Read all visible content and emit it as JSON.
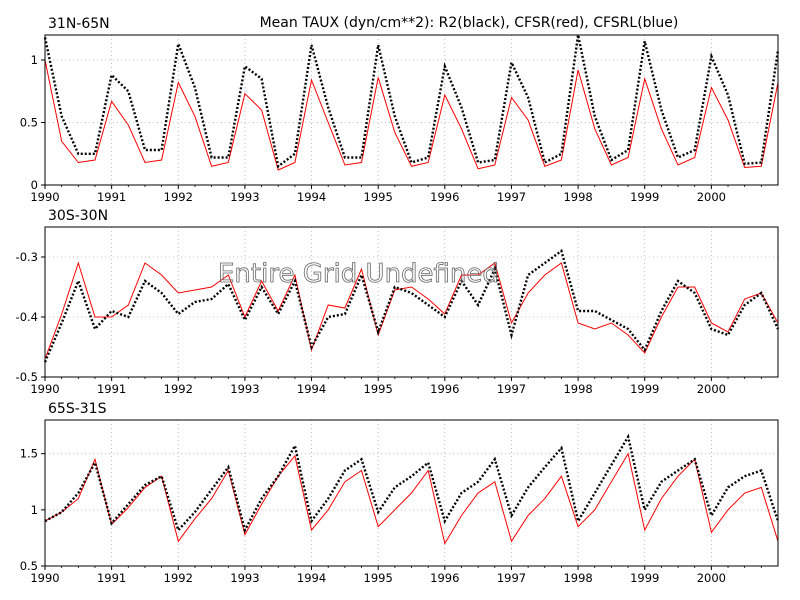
{
  "figure": {
    "title": "Mean TAUX (dyn/cm**2): R2(black), CFSR(red), CFSRL(blue)",
    "watermark": "Entire Grid Undefined"
  },
  "chart_data": [
    {
      "type": "line",
      "title": "31N-65N",
      "x_start": 1990,
      "x_step": 0.25,
      "x_ticks": [
        1990,
        1991,
        1992,
        1993,
        1994,
        1995,
        1996,
        1997,
        1998,
        1999,
        2000
      ],
      "ylim": [
        0,
        1.2
      ],
      "y_ticks": [
        0,
        0.5,
        1
      ],
      "y_tick_labels": [
        "0",
        "0.5",
        "1"
      ],
      "grid": true,
      "series": [
        {
          "name": "R2",
          "color": "#000000",
          "style": "dotted",
          "values": [
            1.18,
            0.55,
            0.25,
            0.25,
            0.88,
            0.75,
            0.28,
            0.28,
            1.13,
            0.78,
            0.22,
            0.22,
            0.95,
            0.85,
            0.15,
            0.25,
            1.12,
            0.62,
            0.22,
            0.22,
            1.12,
            0.55,
            0.18,
            0.22,
            0.95,
            0.62,
            0.18,
            0.2,
            0.98,
            0.7,
            0.18,
            0.25,
            1.2,
            0.55,
            0.2,
            0.28,
            1.15,
            0.6,
            0.22,
            0.28,
            1.03,
            0.72,
            0.17,
            0.18,
            1.08
          ]
        },
        {
          "name": "CFSR",
          "color": "#ff0000",
          "style": "solid",
          "values": [
            1.0,
            0.35,
            0.18,
            0.2,
            0.67,
            0.48,
            0.18,
            0.2,
            0.82,
            0.55,
            0.15,
            0.18,
            0.73,
            0.6,
            0.12,
            0.18,
            0.84,
            0.5,
            0.16,
            0.18,
            0.86,
            0.42,
            0.15,
            0.18,
            0.72,
            0.45,
            0.13,
            0.16,
            0.7,
            0.52,
            0.15,
            0.2,
            0.92,
            0.45,
            0.16,
            0.22,
            0.85,
            0.45,
            0.16,
            0.22,
            0.78,
            0.52,
            0.14,
            0.15,
            0.82
          ]
        }
      ]
    },
    {
      "type": "line",
      "title": "30S-30N",
      "x_start": 1990,
      "x_step": 0.25,
      "x_ticks": [
        1990,
        1991,
        1992,
        1993,
        1994,
        1995,
        1996,
        1997,
        1998,
        1999,
        2000
      ],
      "ylim": [
        -0.5,
        -0.25
      ],
      "y_ticks": [
        -0.5,
        -0.4,
        -0.3
      ],
      "y_tick_labels": [
        "-0.5",
        "-0.4",
        "-0.3"
      ],
      "grid": true,
      "series": [
        {
          "name": "R2",
          "color": "#000000",
          "style": "dotted",
          "values": [
            -0.475,
            -0.41,
            -0.34,
            -0.42,
            -0.39,
            -0.4,
            -0.34,
            -0.36,
            -0.395,
            -0.375,
            -0.37,
            -0.345,
            -0.405,
            -0.35,
            -0.395,
            -0.34,
            -0.45,
            -0.4,
            -0.395,
            -0.33,
            -0.425,
            -0.35,
            -0.36,
            -0.38,
            -0.4,
            -0.34,
            -0.38,
            -0.32,
            -0.43,
            -0.33,
            -0.31,
            -0.29,
            -0.39,
            -0.39,
            -0.405,
            -0.42,
            -0.455,
            -0.39,
            -0.34,
            -0.36,
            -0.42,
            -0.43,
            -0.38,
            -0.36,
            -0.42
          ]
        },
        {
          "name": "CFSR",
          "color": "#ff0000",
          "style": "solid",
          "values": [
            -0.47,
            -0.395,
            -0.31,
            -0.4,
            -0.4,
            -0.38,
            -0.31,
            -0.33,
            -0.36,
            -0.355,
            -0.35,
            -0.33,
            -0.4,
            -0.34,
            -0.39,
            -0.33,
            -0.455,
            -0.38,
            -0.385,
            -0.32,
            -0.43,
            -0.355,
            -0.35,
            -0.37,
            -0.395,
            -0.33,
            -0.33,
            -0.31,
            -0.41,
            -0.36,
            -0.33,
            -0.31,
            -0.41,
            -0.42,
            -0.41,
            -0.43,
            -0.46,
            -0.4,
            -0.35,
            -0.35,
            -0.41,
            -0.425,
            -0.37,
            -0.36,
            -0.41
          ]
        }
      ]
    },
    {
      "type": "line",
      "title": "65S-31S",
      "x_start": 1990,
      "x_step": 0.25,
      "x_ticks": [
        1990,
        1991,
        1992,
        1993,
        1994,
        1995,
        1996,
        1997,
        1998,
        1999,
        2000
      ],
      "ylim": [
        0.5,
        1.8
      ],
      "y_ticks": [
        0.5,
        1,
        1.5
      ],
      "y_tick_labels": [
        "0.5",
        "1",
        "1.5"
      ],
      "grid": true,
      "series": [
        {
          "name": "R2",
          "color": "#000000",
          "style": "dotted",
          "values": [
            0.9,
            0.98,
            1.15,
            1.42,
            0.88,
            1.05,
            1.22,
            1.3,
            0.82,
            0.98,
            1.18,
            1.38,
            0.82,
            1.1,
            1.3,
            1.57,
            0.9,
            1.1,
            1.35,
            1.45,
            0.98,
            1.2,
            1.3,
            1.42,
            0.9,
            1.15,
            1.25,
            1.45,
            0.95,
            1.2,
            1.38,
            1.55,
            0.9,
            1.15,
            1.4,
            1.65,
            1.0,
            1.25,
            1.35,
            1.45,
            0.95,
            1.2,
            1.3,
            1.35,
            0.9
          ]
        },
        {
          "name": "CFSR",
          "color": "#ff0000",
          "style": "solid",
          "values": [
            0.9,
            0.98,
            1.1,
            1.45,
            0.87,
            1.02,
            1.2,
            1.3,
            0.72,
            0.92,
            1.1,
            1.35,
            0.78,
            1.05,
            1.3,
            1.48,
            0.82,
            1.0,
            1.25,
            1.35,
            0.85,
            1.0,
            1.15,
            1.35,
            0.7,
            0.95,
            1.15,
            1.25,
            0.72,
            0.95,
            1.1,
            1.3,
            0.85,
            1.0,
            1.25,
            1.5,
            0.82,
            1.1,
            1.3,
            1.45,
            0.8,
            1.0,
            1.15,
            1.2,
            0.72
          ]
        }
      ]
    }
  ]
}
